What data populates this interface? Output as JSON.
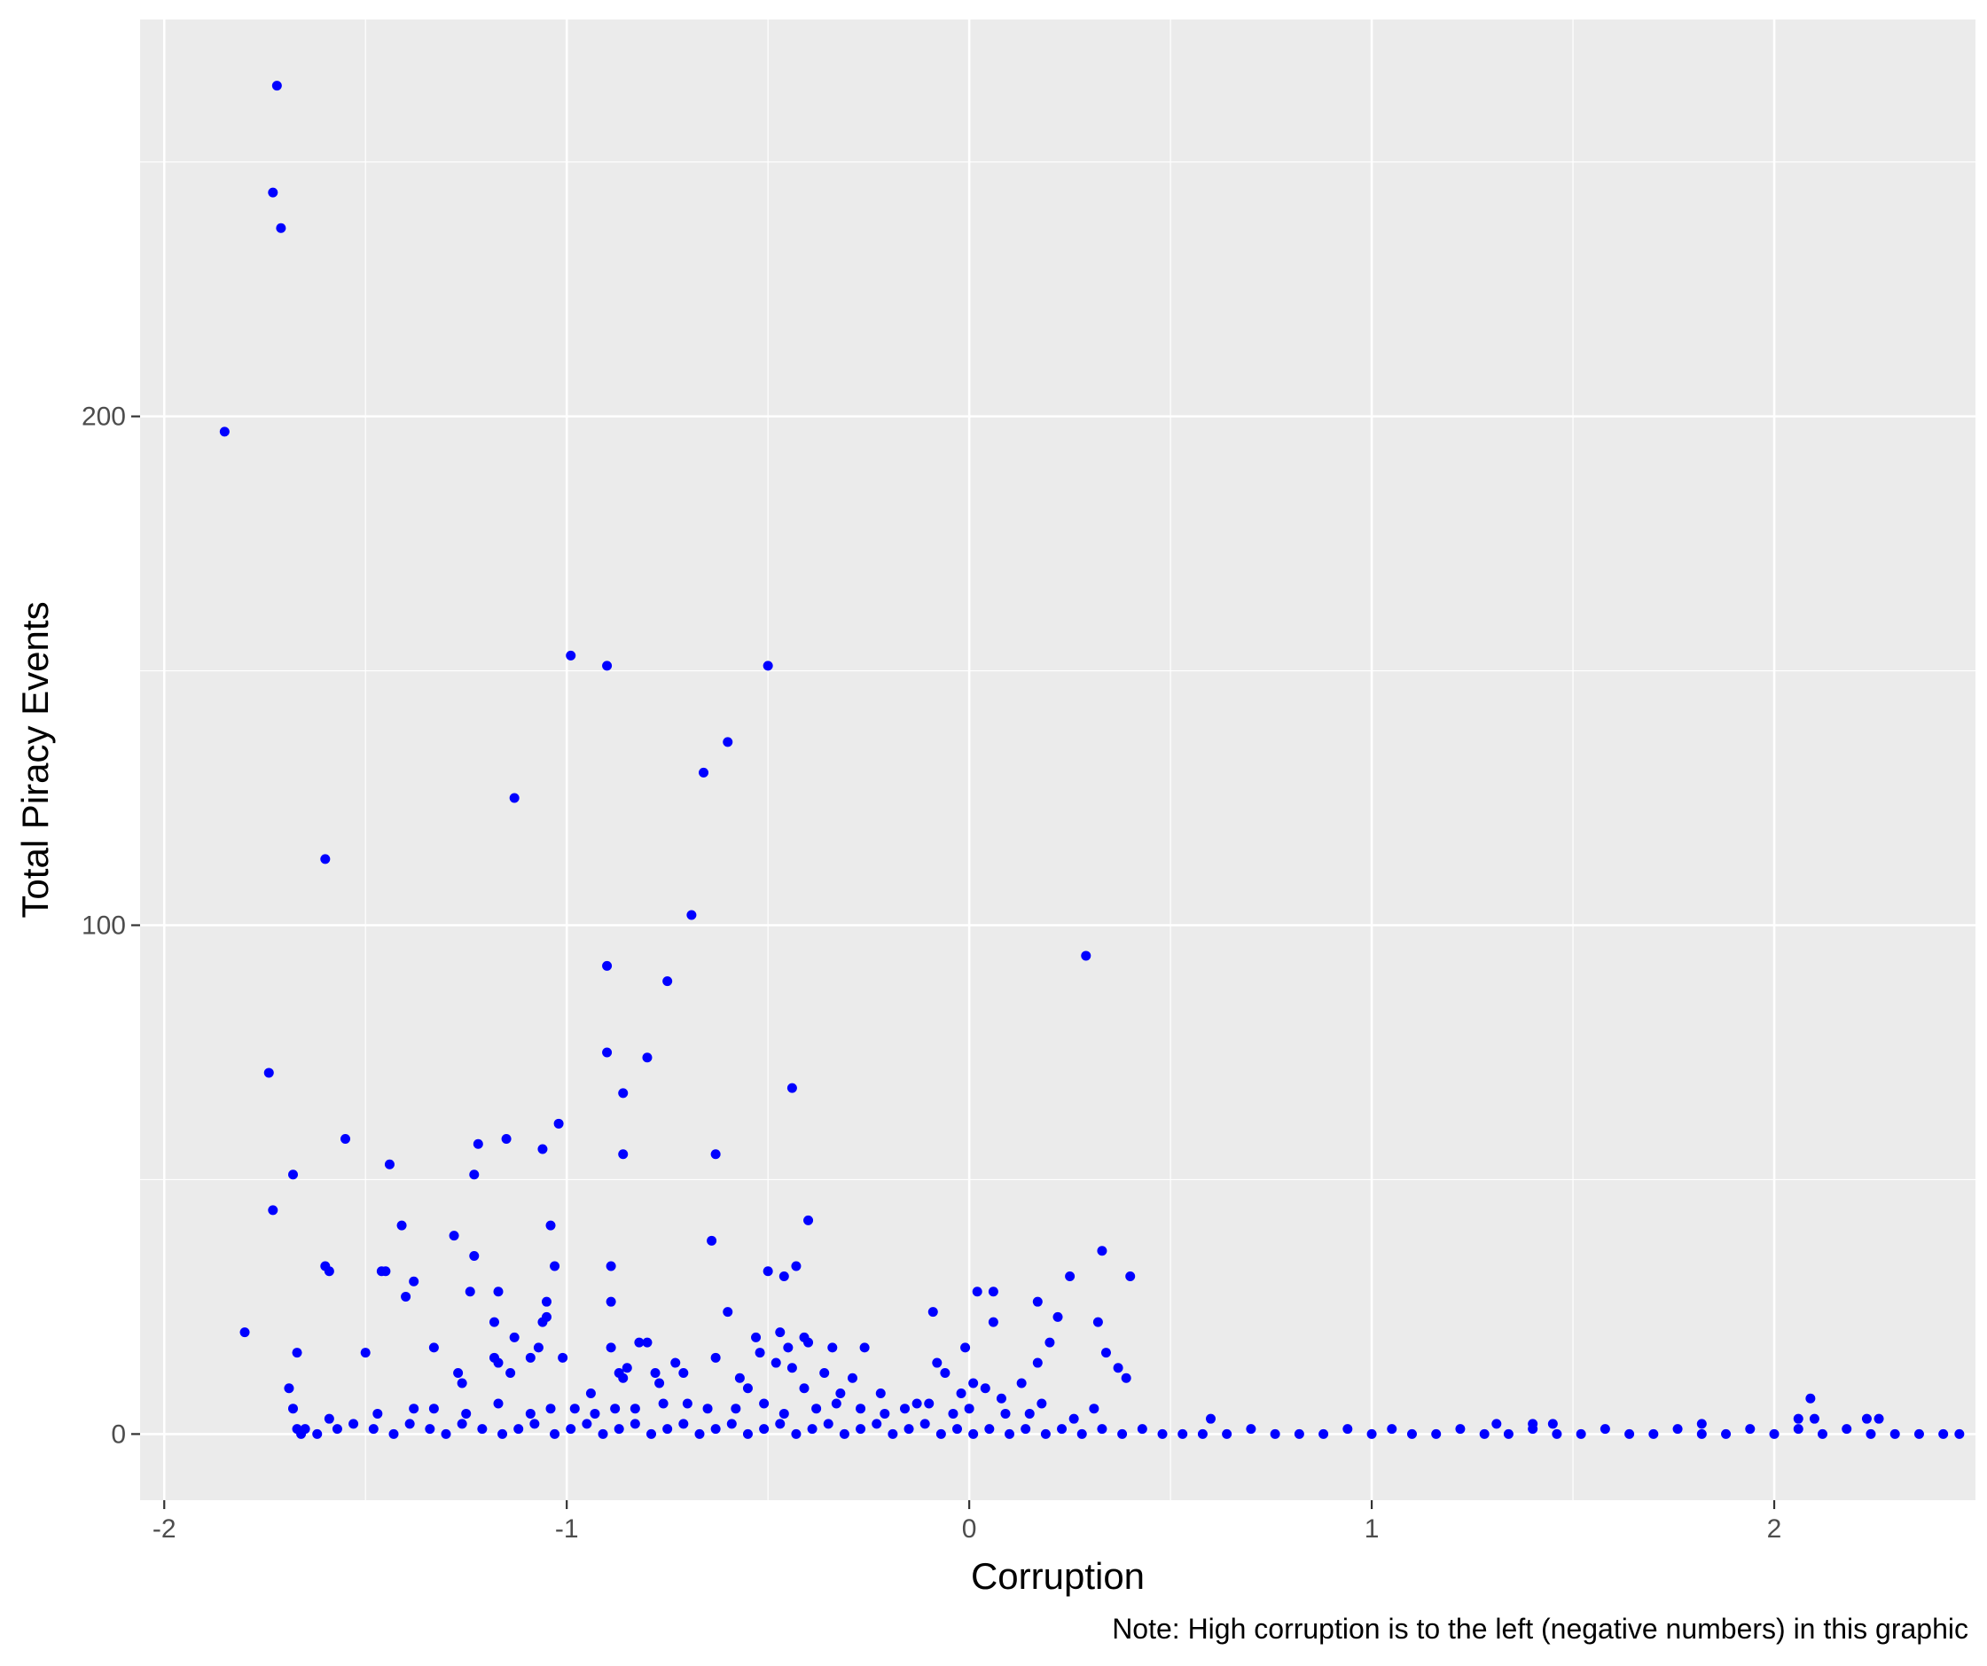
{
  "chart_data": {
    "type": "scatter",
    "title": "",
    "xlabel": "Corruption",
    "ylabel": "Total Piracy Events",
    "caption": "Note: High corruption is to the left (negative numbers) in this graphic",
    "xlim": [
      -2.06,
      2.5
    ],
    "ylim": [
      -13,
      278
    ],
    "x_ticks": [
      -2,
      -1,
      0,
      1,
      2
    ],
    "x_tick_labels": [
      "-2",
      "-1",
      "0",
      "1",
      "2"
    ],
    "y_ticks": [
      0,
      100,
      200
    ],
    "y_tick_labels": [
      "0",
      "100",
      "200"
    ],
    "x_minor_ticks": [
      -1.5,
      -0.5,
      0.5,
      1.5
    ],
    "y_minor_ticks": [
      50,
      150,
      250
    ],
    "grid": true,
    "legend": "none",
    "colors": {
      "points": "#0000FF",
      "panel": "#EBEBEB",
      "grid": "#FFFFFF"
    },
    "points": [
      [
        -1.72,
        265
      ],
      [
        -1.73,
        244
      ],
      [
        -1.71,
        237
      ],
      [
        -1.85,
        197
      ],
      [
        -1.6,
        113
      ],
      [
        -0.99,
        153
      ],
      [
        -0.9,
        151
      ],
      [
        -0.5,
        151
      ],
      [
        -0.6,
        136
      ],
      [
        -0.66,
        130
      ],
      [
        -1.13,
        125
      ],
      [
        -0.69,
        102
      ],
      [
        0.29,
        94
      ],
      [
        -0.9,
        92
      ],
      [
        -0.75,
        89
      ],
      [
        -1.74,
        71
      ],
      [
        -0.9,
        75
      ],
      [
        -0.8,
        74
      ],
      [
        -0.86,
        67
      ],
      [
        -0.44,
        68
      ],
      [
        -1.02,
        61
      ],
      [
        -1.15,
        58
      ],
      [
        -1.22,
        57
      ],
      [
        -1.06,
        56
      ],
      [
        -1.55,
        58
      ],
      [
        -0.86,
        55
      ],
      [
        -0.63,
        55
      ],
      [
        -1.44,
        53
      ],
      [
        -1.68,
        51
      ],
      [
        -1.23,
        51
      ],
      [
        -1.73,
        44
      ],
      [
        -1.41,
        41
      ],
      [
        -1.04,
        41
      ],
      [
        -0.4,
        42
      ],
      [
        -1.28,
        39
      ],
      [
        -0.64,
        38
      ],
      [
        -1.23,
        35
      ],
      [
        0.33,
        36
      ],
      [
        -1.6,
        33
      ],
      [
        -1.59,
        32
      ],
      [
        -1.46,
        32
      ],
      [
        -1.45,
        32
      ],
      [
        -1.03,
        33
      ],
      [
        -0.89,
        33
      ],
      [
        -0.5,
        32
      ],
      [
        -0.43,
        33
      ],
      [
        -0.46,
        31
      ],
      [
        0.25,
        31
      ],
      [
        0.4,
        31
      ],
      [
        -1.38,
        30
      ],
      [
        -1.17,
        28
      ],
      [
        -1.24,
        28
      ],
      [
        0.02,
        28
      ],
      [
        0.06,
        28
      ],
      [
        -1.4,
        27
      ],
      [
        -1.05,
        26
      ],
      [
        -0.89,
        26
      ],
      [
        0.17,
        26
      ],
      [
        -1.05,
        23
      ],
      [
        -1.06,
        22
      ],
      [
        -0.6,
        24
      ],
      [
        -0.09,
        24
      ],
      [
        0.22,
        23
      ],
      [
        0.32,
        22
      ],
      [
        0.06,
        22
      ],
      [
        -1.18,
        22
      ],
      [
        -0.47,
        20
      ],
      [
        -0.45,
        17
      ],
      [
        -0.41,
        19
      ],
      [
        -0.34,
        17
      ],
      [
        -0.26,
        17
      ],
      [
        -1.8,
        20
      ],
      [
        -1.13,
        19
      ],
      [
        -1.07,
        17
      ],
      [
        -0.82,
        18
      ],
      [
        -0.87,
        12
      ],
      [
        -0.8,
        18
      ],
      [
        -0.53,
        19
      ],
      [
        -0.4,
        18
      ],
      [
        0.2,
        18
      ],
      [
        -0.01,
        17
      ],
      [
        -1.67,
        16
      ],
      [
        -1.5,
        16
      ],
      [
        -1.33,
        17
      ],
      [
        -1.01,
        15
      ],
      [
        -0.89,
        17
      ],
      [
        -0.85,
        13
      ],
      [
        -0.73,
        14
      ],
      [
        -0.63,
        15
      ],
      [
        -0.52,
        16
      ],
      [
        -0.48,
        14
      ],
      [
        -0.44,
        13
      ],
      [
        -0.08,
        14
      ],
      [
        0.17,
        14
      ],
      [
        0.34,
        16
      ],
      [
        0.37,
        13
      ],
      [
        0.39,
        11
      ],
      [
        -1.18,
        15
      ],
      [
        -1.17,
        14
      ],
      [
        -1.09,
        15
      ],
      [
        -1.27,
        12
      ],
      [
        -1.14,
        12
      ],
      [
        -0.86,
        11
      ],
      [
        -0.78,
        12
      ],
      [
        -0.71,
        12
      ],
      [
        -0.57,
        11
      ],
      [
        -0.36,
        12
      ],
      [
        -0.29,
        11
      ],
      [
        -0.06,
        12
      ],
      [
        0.13,
        10
      ],
      [
        -1.69,
        9
      ],
      [
        -1.26,
        10
      ],
      [
        -0.94,
        8
      ],
      [
        -0.77,
        10
      ],
      [
        -0.55,
        9
      ],
      [
        -0.41,
        9
      ],
      [
        -0.32,
        8
      ],
      [
        -0.22,
        8
      ],
      [
        -0.13,
        6
      ],
      [
        -0.02,
        8
      ],
      [
        0.01,
        10
      ],
      [
        0.04,
        9
      ],
      [
        0.08,
        7
      ],
      [
        0.18,
        6
      ],
      [
        0.31,
        5
      ],
      [
        -1.68,
        5
      ],
      [
        -1.59,
        3
      ],
      [
        -1.47,
        4
      ],
      [
        -1.38,
        5
      ],
      [
        -1.33,
        5
      ],
      [
        -1.25,
        4
      ],
      [
        -1.17,
        6
      ],
      [
        -1.09,
        4
      ],
      [
        -1.04,
        5
      ],
      [
        -0.98,
        5
      ],
      [
        -0.93,
        4
      ],
      [
        -0.88,
        5
      ],
      [
        -0.83,
        5
      ],
      [
        -0.76,
        6
      ],
      [
        -0.7,
        6
      ],
      [
        -0.65,
        5
      ],
      [
        -0.58,
        5
      ],
      [
        -0.51,
        6
      ],
      [
        -0.46,
        4
      ],
      [
        -0.38,
        5
      ],
      [
        -0.33,
        6
      ],
      [
        -0.27,
        5
      ],
      [
        -0.21,
        4
      ],
      [
        -0.16,
        5
      ],
      [
        -0.1,
        6
      ],
      [
        -0.04,
        4
      ],
      [
        0.0,
        5
      ],
      [
        0.09,
        4
      ],
      [
        0.15,
        4
      ],
      [
        0.26,
        3
      ],
      [
        2.09,
        7
      ],
      [
        2.06,
        3
      ],
      [
        2.1,
        3
      ],
      [
        2.23,
        3
      ],
      [
        2.26,
        3
      ],
      [
        0.6,
        3
      ],
      [
        1.31,
        2
      ],
      [
        1.4,
        2
      ],
      [
        1.45,
        2
      ],
      [
        1.82,
        2
      ],
      [
        -1.67,
        1
      ],
      [
        -1.66,
        0
      ],
      [
        -1.65,
        1
      ],
      [
        -1.62,
        0
      ],
      [
        -1.57,
        1
      ],
      [
        -1.53,
        2
      ],
      [
        -1.48,
        1
      ],
      [
        -1.43,
        0
      ],
      [
        -1.39,
        2
      ],
      [
        -1.34,
        1
      ],
      [
        -1.3,
        0
      ],
      [
        -1.26,
        2
      ],
      [
        -1.21,
        1
      ],
      [
        -1.16,
        0
      ],
      [
        -1.12,
        1
      ],
      [
        -1.08,
        2
      ],
      [
        -1.03,
        0
      ],
      [
        -0.99,
        1
      ],
      [
        -0.95,
        2
      ],
      [
        -0.91,
        0
      ],
      [
        -0.87,
        1
      ],
      [
        -0.83,
        2
      ],
      [
        -0.79,
        0
      ],
      [
        -0.75,
        1
      ],
      [
        -0.71,
        2
      ],
      [
        -0.67,
        0
      ],
      [
        -0.63,
        1
      ],
      [
        -0.59,
        2
      ],
      [
        -0.55,
        0
      ],
      [
        -0.51,
        1
      ],
      [
        -0.47,
        2
      ],
      [
        -0.43,
        0
      ],
      [
        -0.39,
        1
      ],
      [
        -0.35,
        2
      ],
      [
        -0.31,
        0
      ],
      [
        -0.27,
        1
      ],
      [
        -0.23,
        2
      ],
      [
        -0.19,
        0
      ],
      [
        -0.15,
        1
      ],
      [
        -0.11,
        2
      ],
      [
        -0.07,
        0
      ],
      [
        -0.03,
        1
      ],
      [
        0.01,
        0
      ],
      [
        0.05,
        1
      ],
      [
        0.1,
        0
      ],
      [
        0.14,
        1
      ],
      [
        0.19,
        0
      ],
      [
        0.23,
        1
      ],
      [
        0.28,
        0
      ],
      [
        0.33,
        1
      ],
      [
        0.38,
        0
      ],
      [
        0.43,
        1
      ],
      [
        0.48,
        0
      ],
      [
        0.53,
        0
      ],
      [
        0.58,
        0
      ],
      [
        0.64,
        0
      ],
      [
        0.7,
        1
      ],
      [
        0.76,
        0
      ],
      [
        0.82,
        0
      ],
      [
        0.88,
        0
      ],
      [
        0.94,
        1
      ],
      [
        1.0,
        0
      ],
      [
        1.05,
        1
      ],
      [
        1.1,
        0
      ],
      [
        1.16,
        0
      ],
      [
        1.22,
        1
      ],
      [
        1.28,
        0
      ],
      [
        1.34,
        0
      ],
      [
        1.4,
        1
      ],
      [
        1.46,
        0
      ],
      [
        1.52,
        0
      ],
      [
        1.58,
        1
      ],
      [
        1.64,
        0
      ],
      [
        1.7,
        0
      ],
      [
        1.76,
        1
      ],
      [
        1.82,
        0
      ],
      [
        1.88,
        0
      ],
      [
        1.94,
        1
      ],
      [
        2.0,
        0
      ],
      [
        2.06,
        1
      ],
      [
        2.12,
        0
      ],
      [
        2.18,
        1
      ],
      [
        2.24,
        0
      ],
      [
        2.3,
        0
      ],
      [
        2.36,
        0
      ],
      [
        2.42,
        0
      ],
      [
        2.46,
        0
      ]
    ]
  }
}
